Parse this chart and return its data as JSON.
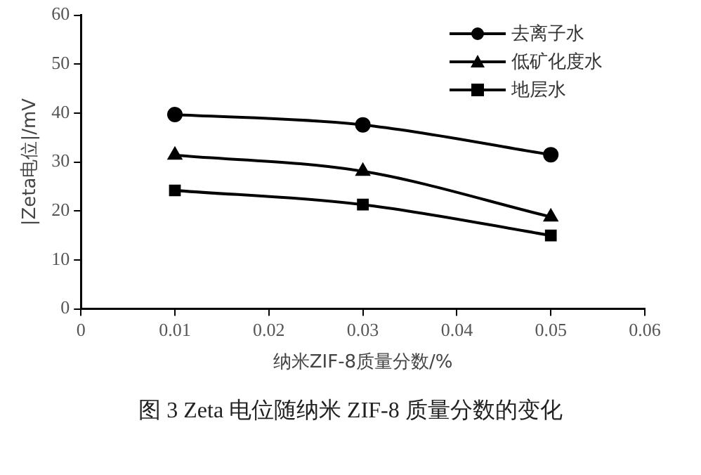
{
  "chart_data": {
    "type": "line",
    "xlabel": "纳米ZIF-8质量分数/%",
    "ylabel": "|Zeta电位|/mV",
    "x": [
      0.01,
      0.03,
      0.05
    ],
    "series": [
      {
        "name": "去离子水",
        "color": "#000000",
        "marker": "circle",
        "values": [
          39.7,
          37.6,
          31.5
        ]
      },
      {
        "name": "低矿化度水",
        "color": "#000000",
        "marker": "triangle",
        "values": [
          31.4,
          28.1,
          18.8
        ]
      },
      {
        "name": "地层水",
        "color": "#000000",
        "marker": "square",
        "values": [
          24.2,
          21.3,
          15.0
        ]
      }
    ],
    "xlim": [
      0,
      0.06
    ],
    "xticks": [
      0,
      0.01,
      0.02,
      0.03,
      0.04,
      0.05,
      0.06
    ],
    "ylim": [
      0,
      60
    ],
    "yticks": [
      0,
      10,
      20,
      30,
      40,
      50,
      60
    ],
    "grid": false,
    "legend": "top right",
    "annotations": [
      "图 3   Zeta 电位随纳米 ZIF-8 质量分数的变化"
    ]
  }
}
